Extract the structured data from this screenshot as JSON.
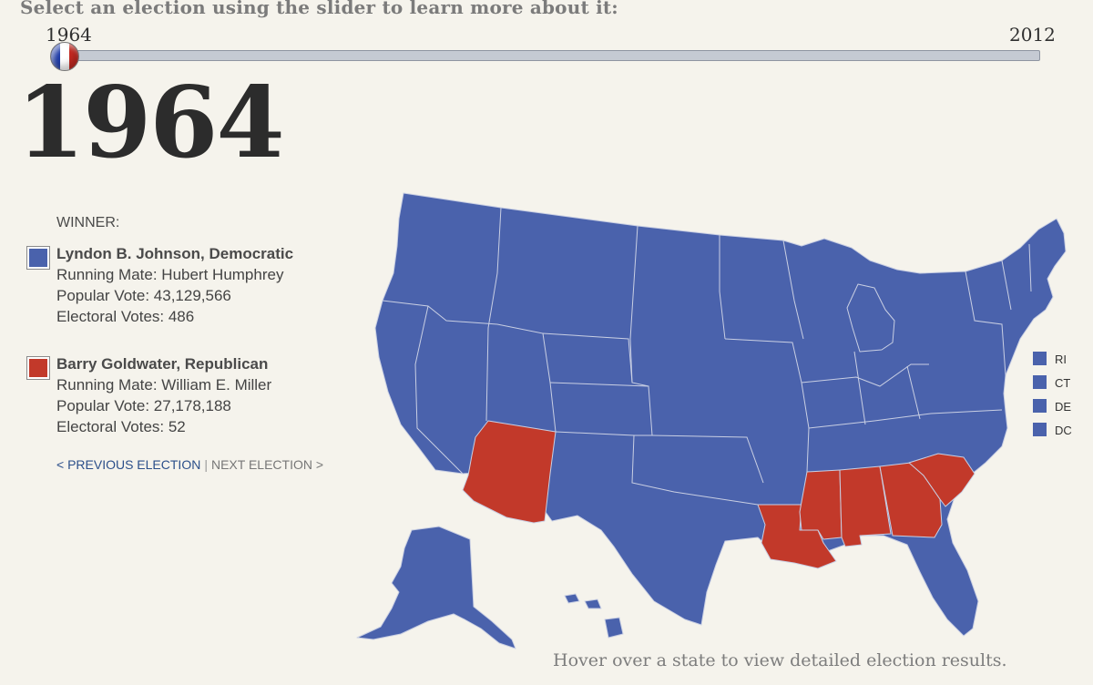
{
  "header": {
    "prompt": "Select an election using the slider to learn more about it:",
    "slider_min_label": "1964",
    "slider_max_label": "2012",
    "slider_value": 1964
  },
  "election": {
    "year": "1964",
    "winner_heading": "WINNER:",
    "candidates": [
      {
        "name": "Lyndon B. Johnson, Democratic",
        "running_mate": "Running Mate: Hubert Humphrey",
        "popular_vote": "Popular Vote: 43,129,566",
        "electoral_votes": "Electoral Votes: 486",
        "color": "#4a62ac"
      },
      {
        "name": "Barry Goldwater, Republican",
        "running_mate": "Running Mate: William E. Miller",
        "popular_vote": "Popular Vote: 27,178,188",
        "electoral_votes": "Electoral Votes: 52",
        "color": "#c2392a"
      }
    ]
  },
  "nav": {
    "previous": "< PREVIOUS ELECTION",
    "separator": "|",
    "next": "NEXT ELECTION >"
  },
  "small_states": [
    "RI",
    "CT",
    "DE",
    "DC"
  ],
  "map": {
    "democratic_color": "#4a62ac",
    "republican_color": "#c2392a",
    "republican_states": [
      "AZ",
      "LA",
      "MS",
      "AL",
      "GA",
      "SC"
    ]
  },
  "footer": {
    "hint": "Hover over a state to view detailed election results."
  }
}
